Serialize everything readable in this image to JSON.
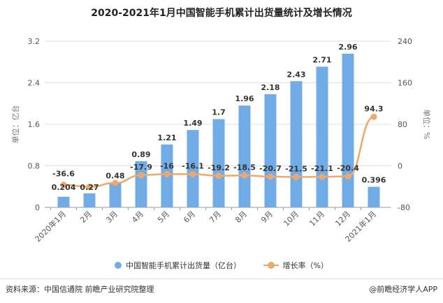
{
  "chart_data": {
    "type": "bar+line",
    "title": "2020-2021年1月中国智能手机累计出货量统计及增长情况",
    "categories": [
      "2020年1月",
      "2月",
      "3月",
      "4月",
      "5月",
      "6月",
      "7月",
      "8月",
      "9月",
      "10月",
      "11月",
      "12月",
      "2021年1月"
    ],
    "series": [
      {
        "name": "中国智能手机累计出货量（亿台）",
        "type": "bar",
        "axis": "left",
        "color": "#72ace6",
        "values": [
          0.204,
          0.27,
          0.48,
          0.89,
          1.21,
          1.49,
          1.7,
          1.96,
          2.18,
          2.43,
          2.71,
          2.96,
          0.396
        ]
      },
      {
        "name": "增长率（%）",
        "type": "line",
        "axis": "right",
        "color": "#f0a868",
        "values": [
          -36.6,
          -40.5,
          -33.0,
          -17.9,
          -16,
          -16.1,
          -19.2,
          -18.5,
          -20.7,
          -21.5,
          -21.1,
          -20.4,
          94.3
        ],
        "labels": [
          "-36.6",
          "",
          "",
          "-17.9",
          "-16",
          "-16.1",
          "-19.2",
          "-18.5",
          "-20.7",
          "-21.5",
          "-21.1",
          "-20.4",
          "94.3"
        ]
      }
    ],
    "bar_labels": [
      "0.204",
      "0.27",
      "0.48",
      "0.89",
      "1.21",
      "1.49",
      "1.7",
      "1.96",
      "2.18",
      "2.43",
      "2.71",
      "2.96",
      "0.396"
    ],
    "ylabel": "单位：亿台",
    "y2label": "单位：%",
    "ylim": [
      0,
      3.2
    ],
    "yticks": [
      "0",
      "0.8",
      "1.6",
      "2.4",
      "3.2"
    ],
    "y2lim": [
      -80,
      240
    ],
    "y2ticks": [
      "-80",
      "0",
      "80",
      "160",
      "240"
    ],
    "grid": true,
    "legend": "bottom"
  },
  "footer": {
    "source": "资料来源：中国信通院 前瞻产业研究院整理",
    "brand": "@前瞻经济学人APP"
  }
}
